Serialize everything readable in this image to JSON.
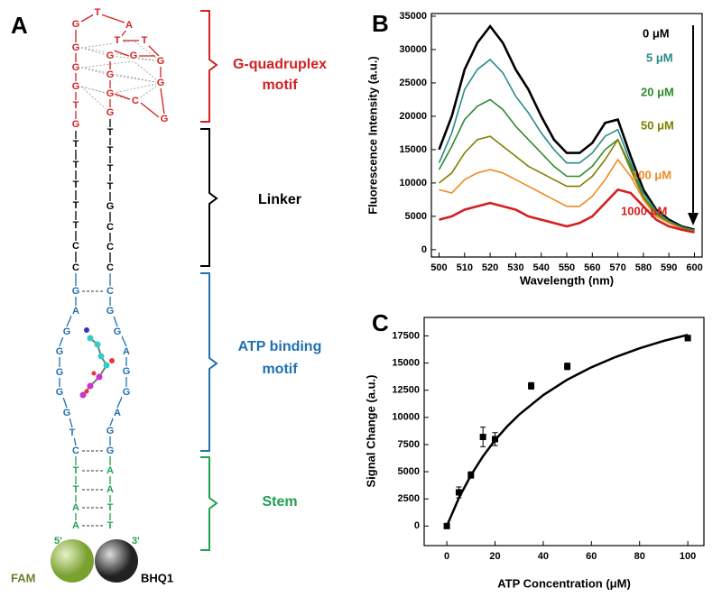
{
  "diagram": {
    "label": "A",
    "bases": [
      "G",
      "T",
      "A",
      "T",
      "T",
      "G",
      "G",
      "G",
      "T",
      "G",
      "G",
      "G",
      "G",
      "G",
      "G",
      "G",
      "G",
      "C",
      "G",
      "T",
      "T",
      "T",
      "T",
      "T",
      "C",
      "C",
      "T",
      "T",
      "T",
      "T",
      "G",
      "C",
      "C",
      "C",
      "G",
      "A",
      "G",
      "G",
      "G",
      "G",
      "G",
      "T",
      "C",
      "C",
      "G",
      "G",
      "A",
      "G",
      "G",
      "A",
      "G",
      "G",
      "T",
      "T",
      "A",
      "A",
      "A",
      "A",
      "T",
      "T"
    ],
    "regions": [
      {
        "lines": [
          "G-quadruplex",
          "motif"
        ]
      },
      {
        "lines": [
          "Linker"
        ]
      },
      {
        "lines": [
          "ATP binding",
          "motif"
        ]
      },
      {
        "lines": [
          "Stem"
        ]
      }
    ],
    "five_prime": "5'",
    "three_prime": "3'",
    "donor": "FAM",
    "quencher": "BHQ1"
  },
  "chart_data": [
    {
      "type": "line",
      "label": "B",
      "xlabel": "Wavelength (nm)",
      "ylabel": "Fluorescence Intensity (a.u.)",
      "x": [
        500,
        505,
        510,
        515,
        520,
        525,
        530,
        535,
        540,
        545,
        550,
        555,
        560,
        565,
        570,
        575,
        580,
        585,
        590,
        595,
        600
      ],
      "xlim": [
        497,
        603
      ],
      "xticks": [
        500,
        510,
        520,
        530,
        540,
        550,
        560,
        570,
        580,
        590,
        600
      ],
      "ylim": [
        -1100,
        35400
      ],
      "yticks": [
        0,
        5000,
        10000,
        15000,
        20000,
        25000,
        30000,
        35000
      ],
      "series": [
        {
          "name": "0 μM",
          "color": "#000000",
          "values": [
            15000,
            20000,
            27000,
            31000,
            33500,
            31000,
            27000,
            24000,
            20000,
            16500,
            14500,
            14500,
            16000,
            19000,
            19500,
            14000,
            9000,
            6000,
            4500,
            3500,
            3000
          ]
        },
        {
          "name": "5 μM",
          "color": "#2a8a8a",
          "values": [
            13000,
            17500,
            24000,
            27000,
            28500,
            26500,
            23000,
            20500,
            17500,
            15000,
            13000,
            13000,
            14500,
            17000,
            18000,
            13000,
            8500,
            5800,
            4300,
            3400,
            2900
          ]
        },
        {
          "name": "20 μM",
          "color": "#2e8b2e",
          "values": [
            12000,
            15500,
            19500,
            21500,
            22500,
            21000,
            18500,
            16500,
            14500,
            12500,
            11000,
            11000,
            12500,
            15000,
            16500,
            12500,
            8000,
            5500,
            4200,
            3300,
            2800
          ]
        },
        {
          "name": "50 μM",
          "color": "#808000",
          "values": [
            10000,
            11500,
            14500,
            16500,
            17000,
            15500,
            14000,
            12500,
            11500,
            10500,
            9500,
            9500,
            11000,
            13500,
            16500,
            12000,
            7800,
            5300,
            4100,
            3200,
            2800
          ]
        },
        {
          "name": "100 μM",
          "color": "#f08a20",
          "values": [
            9000,
            8500,
            10500,
            11500,
            12000,
            11500,
            10500,
            9500,
            8500,
            7500,
            6500,
            6500,
            8000,
            10500,
            13500,
            11000,
            7500,
            5000,
            4000,
            3100,
            2700
          ]
        },
        {
          "name": "1000 μM",
          "color": "#d42020",
          "values": [
            4500,
            5000,
            6000,
            6500,
            7000,
            6500,
            6000,
            5000,
            4500,
            4000,
            3500,
            4000,
            5000,
            7000,
            9000,
            8500,
            6500,
            4500,
            3500,
            3000,
            2600
          ]
        }
      ]
    },
    {
      "type": "scatter",
      "label": "C",
      "xlabel": "ATP Concentration (μM)",
      "ylabel": "Signal Change (a.u.)",
      "x": [
        0,
        5,
        10,
        15,
        20,
        35,
        50,
        100
      ],
      "values": [
        0,
        3100,
        4700,
        8200,
        8000,
        12900,
        14700,
        17300
      ],
      "errors": [
        100,
        500,
        300,
        900,
        600,
        300,
        300,
        250
      ],
      "color": "#000000",
      "xlim": [
        -9.4,
        106.7
      ],
      "xticks": [
        0,
        20,
        40,
        60,
        80,
        100
      ],
      "ylim": [
        -1800,
        19200
      ],
      "yticks": [
        0,
        2500,
        5000,
        7500,
        10000,
        12500,
        15000,
        17500
      ],
      "fit": {
        "x": [
          0,
          5,
          10,
          15,
          20,
          25,
          30,
          40,
          50,
          60,
          70,
          80,
          90,
          100
        ],
        "values": [
          0,
          2576,
          4678,
          6426,
          7901,
          9164,
          10256,
          12044,
          13469,
          14612,
          15560,
          16360,
          17045,
          17601
        ]
      }
    }
  ]
}
